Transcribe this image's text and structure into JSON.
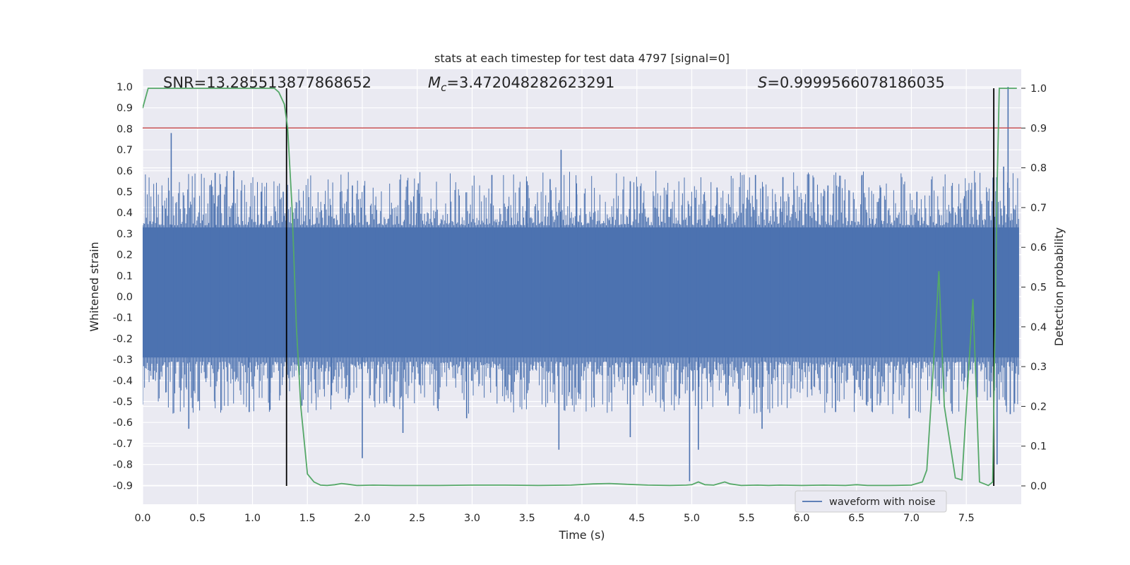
{
  "chart_data": {
    "type": "line",
    "title": "stats at each timestep for test data 4797 [signal=0]",
    "xlabel": "Time (s)",
    "ylabel": "Whitened strain",
    "y2label": "Detection probability",
    "xlim": [
      0.0,
      8.0
    ],
    "ylim": [
      -1.0,
      1.1
    ],
    "y2lim": [
      -0.05,
      1.05
    ],
    "x_ticks": [
      "0.0",
      "0.5",
      "1.0",
      "1.5",
      "2.0",
      "2.5",
      "3.0",
      "3.5",
      "4.0",
      "4.5",
      "5.0",
      "5.5",
      "6.0",
      "6.5",
      "7.0",
      "7.5"
    ],
    "y_ticks": [
      "1.0",
      "0.9",
      "0.8",
      "0.7",
      "0.6",
      "0.5",
      "0.4",
      "0.3",
      "0.2",
      "0.1",
      "0.0",
      "-0.1",
      "-0.2",
      "-0.3",
      "-0.4",
      "-0.5",
      "-0.6",
      "-0.7",
      "-0.8",
      "-0.9"
    ],
    "y2_ticks": [
      "1.0",
      "0.9",
      "0.8",
      "0.7",
      "0.6",
      "0.5",
      "0.4",
      "0.3",
      "0.2",
      "0.1",
      "0.0"
    ],
    "grid": true,
    "legend_position": "lower-right",
    "annotations": {
      "snr": "SNR=13.285513877868652",
      "mc_symbol": "M",
      "mc_sub": "c",
      "mc_value": "=3.472048282623291",
      "s_symbol": "S",
      "s_value": "=0.9999566078186035"
    },
    "threshold_line": {
      "axis": "y2",
      "value": 0.9,
      "color": "#c44e52"
    },
    "vertical_lines": [
      1.31,
      7.75
    ],
    "vertical_line_range_y2": [
      0.0,
      1.0
    ],
    "waveform": {
      "name": "waveform with noise",
      "color": "#4c72b0",
      "core_range": [
        -0.29,
        0.33
      ],
      "spikes": [
        [
          0.26,
          0.78
        ],
        [
          0.42,
          -0.63
        ],
        [
          0.66,
          0.59
        ],
        [
          0.83,
          0.6
        ],
        [
          0.97,
          -0.55
        ],
        [
          1.08,
          0.5
        ],
        [
          1.16,
          -0.54
        ],
        [
          1.28,
          0.5
        ],
        [
          1.45,
          -0.52
        ],
        [
          1.72,
          -0.47
        ],
        [
          1.91,
          0.53
        ],
        [
          2.0,
          -0.77
        ],
        [
          2.37,
          -0.65
        ],
        [
          2.51,
          0.54
        ],
        [
          2.95,
          -0.58
        ],
        [
          3.18,
          0.58
        ],
        [
          3.5,
          0.55
        ],
        [
          3.71,
          0.56
        ],
        [
          3.79,
          -0.73
        ],
        [
          3.81,
          0.7
        ],
        [
          3.95,
          0.54
        ],
        [
          4.44,
          0.55
        ],
        [
          4.44,
          -0.67
        ],
        [
          4.98,
          -0.88
        ],
        [
          5.06,
          -0.73
        ],
        [
          5.23,
          0.52
        ],
        [
          5.33,
          -0.52
        ],
        [
          5.58,
          0.58
        ],
        [
          5.64,
          -0.63
        ],
        [
          5.83,
          0.57
        ],
        [
          6.24,
          0.53
        ],
        [
          6.31,
          -0.55
        ],
        [
          6.55,
          0.58
        ],
        [
          6.72,
          0.52
        ],
        [
          6.98,
          -0.58
        ],
        [
          7.05,
          0.5
        ],
        [
          7.6,
          -0.48
        ],
        [
          7.72,
          -0.48
        ],
        [
          7.78,
          -0.8
        ],
        [
          7.84,
          0.62
        ],
        [
          7.88,
          1.0
        ],
        [
          7.9,
          -0.56
        ],
        [
          7.94,
          -0.51
        ]
      ]
    },
    "probability": {
      "name": "Detection probability",
      "color": "#55a868",
      "x": [
        0.0,
        0.05,
        0.1,
        0.2,
        0.3,
        0.5,
        0.7,
        0.9,
        1.1,
        1.2,
        1.24,
        1.29,
        1.32,
        1.36,
        1.4,
        1.44,
        1.5,
        1.56,
        1.62,
        1.68,
        1.75,
        1.81,
        1.87,
        1.95,
        2.1,
        2.3,
        2.5,
        2.7,
        3.0,
        3.3,
        3.6,
        3.9,
        4.1,
        4.25,
        4.4,
        4.6,
        4.8,
        4.95,
        5.0,
        5.06,
        5.12,
        5.2,
        5.3,
        5.35,
        5.45,
        5.6,
        5.7,
        5.8,
        6.0,
        6.2,
        6.4,
        6.5,
        6.6,
        6.8,
        7.0,
        7.1,
        7.14,
        7.2,
        7.25,
        7.3,
        7.4,
        7.46,
        7.56,
        7.62,
        7.7,
        7.74,
        7.78,
        7.8,
        7.83,
        7.87,
        7.9,
        7.96
      ],
      "y": [
        0.95,
        1.0,
        1.0,
        1.0,
        1.0,
        1.0,
        1.0,
        1.0,
        1.0,
        1.0,
        0.99,
        0.96,
        0.9,
        0.7,
        0.4,
        0.2,
        0.03,
        0.01,
        0.002,
        0.001,
        0.003,
        0.006,
        0.004,
        0.001,
        0.002,
        0.001,
        0.001,
        0.001,
        0.002,
        0.002,
        0.001,
        0.002,
        0.005,
        0.006,
        0.004,
        0.002,
        0.001,
        0.002,
        0.003,
        0.01,
        0.003,
        0.002,
        0.01,
        0.005,
        0.001,
        0.002,
        0.001,
        0.002,
        0.001,
        0.002,
        0.001,
        0.003,
        0.001,
        0.001,
        0.002,
        0.01,
        0.04,
        0.3,
        0.54,
        0.2,
        0.02,
        0.015,
        0.47,
        0.01,
        0.001,
        0.01,
        0.75,
        1.0,
        1.0,
        1.0,
        1.0,
        1.0
      ]
    }
  }
}
